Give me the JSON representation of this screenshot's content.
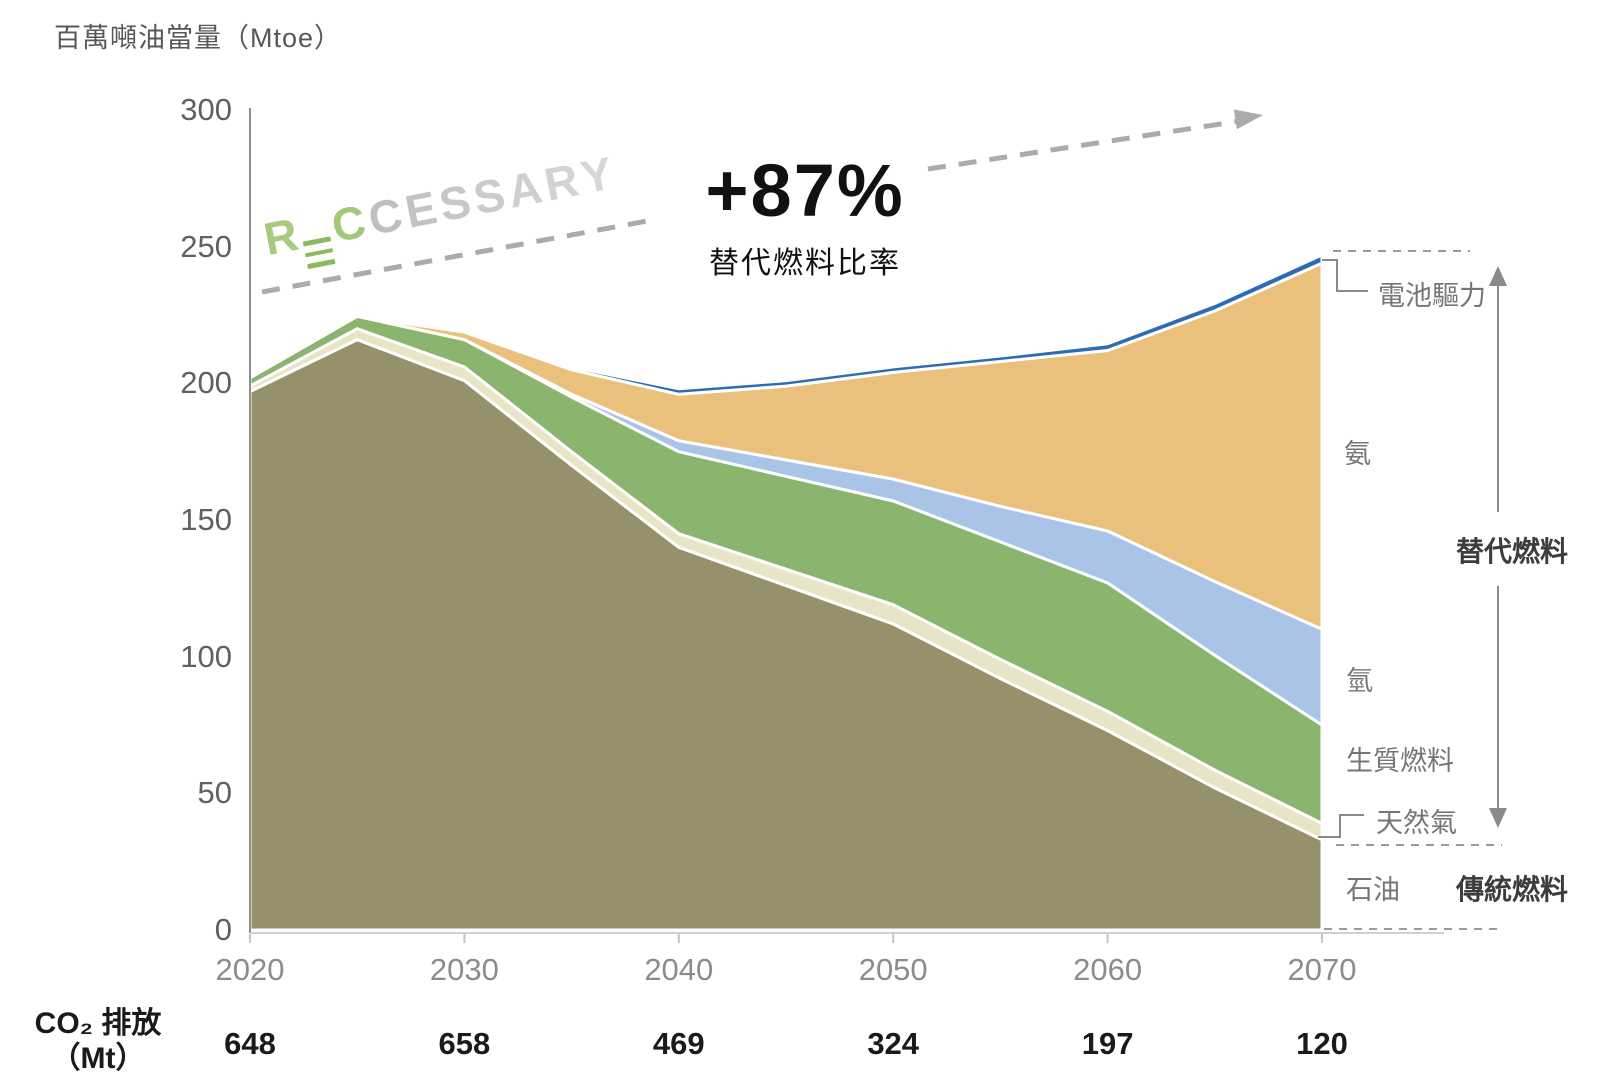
{
  "title": "百萬噸油當量（Mtoe）",
  "watermark": {
    "text": "RECCESSARY",
    "letters": [
      {
        "ch": "R",
        "color": "#a6ca7e"
      },
      {
        "ch": "E",
        "color": "#8cbb5f",
        "glyph": "bars"
      },
      {
        "ch": "C",
        "color": "#a2c878"
      },
      {
        "ch": "C",
        "color": "#bfbfbf"
      },
      {
        "ch": "E",
        "color": "#c3c3c3"
      },
      {
        "ch": "S",
        "color": "#c7c7c7"
      },
      {
        "ch": "S",
        "color": "#cbcbcb"
      },
      {
        "ch": "A",
        "color": "#cfcfcf"
      },
      {
        "ch": "R",
        "color": "#d3d3d3"
      },
      {
        "ch": "Y",
        "color": "#d7d7d7"
      }
    ]
  },
  "annotation": {
    "value": "+87%",
    "label": "替代燃料比率"
  },
  "chart_data": {
    "type": "area",
    "stacked": true,
    "title": "百萬噸油當量（Mtoe）",
    "x": [
      2020,
      2025,
      2030,
      2035,
      2040,
      2045,
      2050,
      2055,
      2060,
      2065,
      2070
    ],
    "x_ticks": [
      2020,
      2030,
      2040,
      2050,
      2060,
      2070
    ],
    "ylim": [
      0,
      300
    ],
    "y_ticks": [
      0,
      50,
      100,
      150,
      200,
      250,
      300
    ],
    "grid": false,
    "series": [
      {
        "name": "石油",
        "en": "oil",
        "group": "傳統燃料",
        "color": "#96906b",
        "values": [
          197,
          216,
          201,
          170,
          140,
          126,
          112,
          92,
          73,
          52,
          33
        ]
      },
      {
        "name": "天然氣",
        "en": "natural-gas",
        "group": "替代燃料",
        "color": "#e7e4c7",
        "values": [
          2,
          4,
          5,
          5,
          5,
          6,
          7,
          7,
          7,
          6.5,
          6
        ]
      },
      {
        "name": "生質燃料",
        "en": "biofuel",
        "group": "替代燃料",
        "color": "#8bb46f",
        "values": [
          3,
          4.5,
          10,
          20,
          30,
          34,
          38,
          43,
          47,
          42,
          36
        ]
      },
      {
        "name": "氫",
        "en": "hydrogen",
        "group": "替代燃料",
        "color": "#aac4e8",
        "values": [
          0,
          0,
          0,
          1,
          4,
          6,
          8,
          13,
          19,
          27,
          35
        ]
      },
      {
        "name": "氨",
        "en": "ammonia",
        "group": "替代燃料",
        "color": "#e9c17c",
        "values": [
          0,
          0,
          2.7,
          9,
          17,
          27,
          39,
          53,
          66,
          99,
          134
        ]
      },
      {
        "name": "電池驅力",
        "en": "battery",
        "group": "替代燃料",
        "color": "#2d6cb5",
        "values": [
          0,
          0,
          0,
          1,
          2,
          2,
          2,
          2,
          2.5,
          2.7,
          3
        ]
      }
    ],
    "annotations": [
      {
        "text": "+87%",
        "subtext": "替代燃料比率",
        "meaning": "alternative fuel share in 2070"
      }
    ]
  },
  "co2_row": {
    "label_line1": "CO₂ 排放",
    "label_line2": "（Mt）",
    "years": [
      2020,
      2030,
      2040,
      2050,
      2060,
      2070
    ],
    "values": [
      648,
      658,
      469,
      324,
      197,
      120
    ]
  },
  "legend": {
    "battery": "電池驅力",
    "ammonia": "氨",
    "hydrogen": "氫",
    "biofuel": "生質燃料",
    "natural_gas": "天然氣",
    "oil": "石油",
    "alt_group": "替代燃料",
    "conv_group": "傳統燃料"
  }
}
